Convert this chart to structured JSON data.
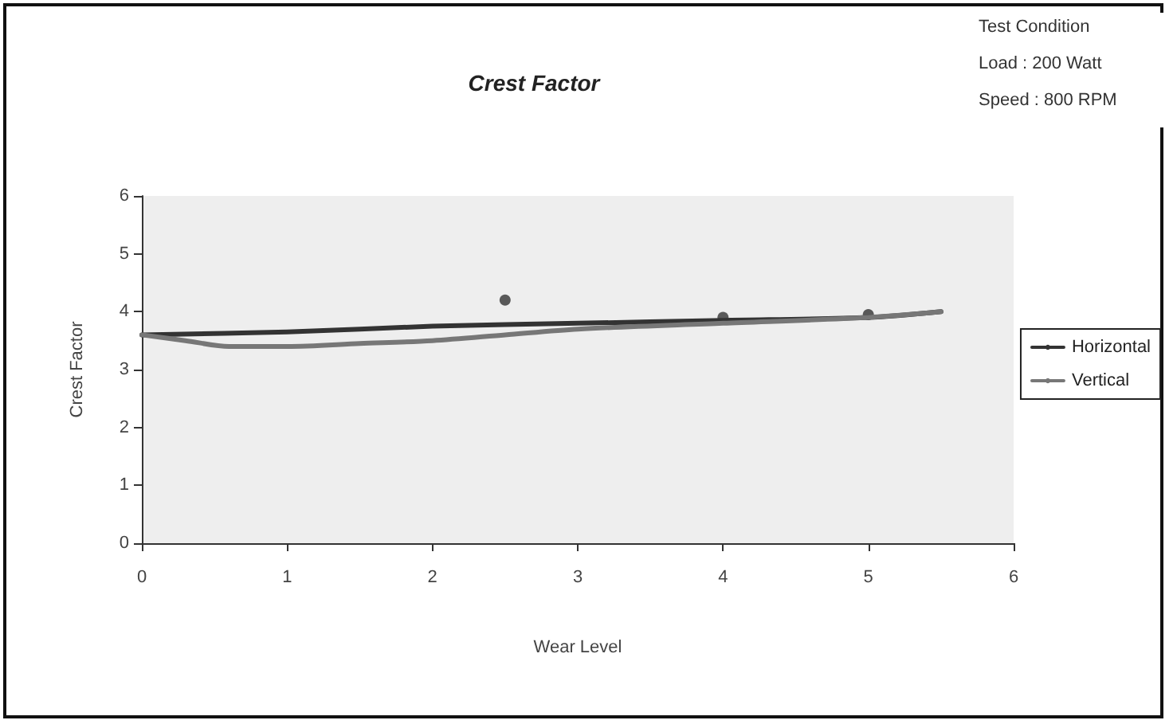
{
  "chart_data": {
    "type": "line",
    "title": "Crest Factor",
    "xlabel": "Wear Level",
    "ylabel": "Crest Factor",
    "annotations": [
      "Test Condition",
      "Load : 200 Watt",
      "Speed : 800 RPM"
    ],
    "series": [
      {
        "name": "Horizontal",
        "color": "#333333",
        "x": [
          0,
          1,
          2,
          3,
          4,
          5,
          5.5
        ],
        "values": [
          3.6,
          3.65,
          3.75,
          3.8,
          3.85,
          3.9,
          4.0
        ],
        "line_style": "solid"
      },
      {
        "name": "Vertical",
        "color": "#777777",
        "x": [
          0,
          0.3,
          0.6,
          1,
          1.5,
          2,
          2.5,
          3,
          4,
          5,
          5.5
        ],
        "values": [
          3.6,
          3.5,
          3.4,
          3.4,
          3.45,
          3.5,
          3.6,
          3.7,
          3.8,
          3.9,
          4.0
        ],
        "line_style": "solid"
      },
      {
        "type": "scatter",
        "color": "#333333",
        "x": [
          2.5,
          4,
          5
        ],
        "values": [
          4.2,
          3.9,
          3.95
        ],
        "marker": "circle"
      }
    ],
    "xlim": [
      0,
      6
    ],
    "xticks": [
      0,
      1,
      2,
      3,
      4,
      5,
      6
    ],
    "ylim": [
      0,
      6
    ],
    "yticks": [
      0,
      1,
      2,
      3,
      4,
      5,
      6
    ],
    "grid": false,
    "legend": "right",
    "marker": "none"
  }
}
